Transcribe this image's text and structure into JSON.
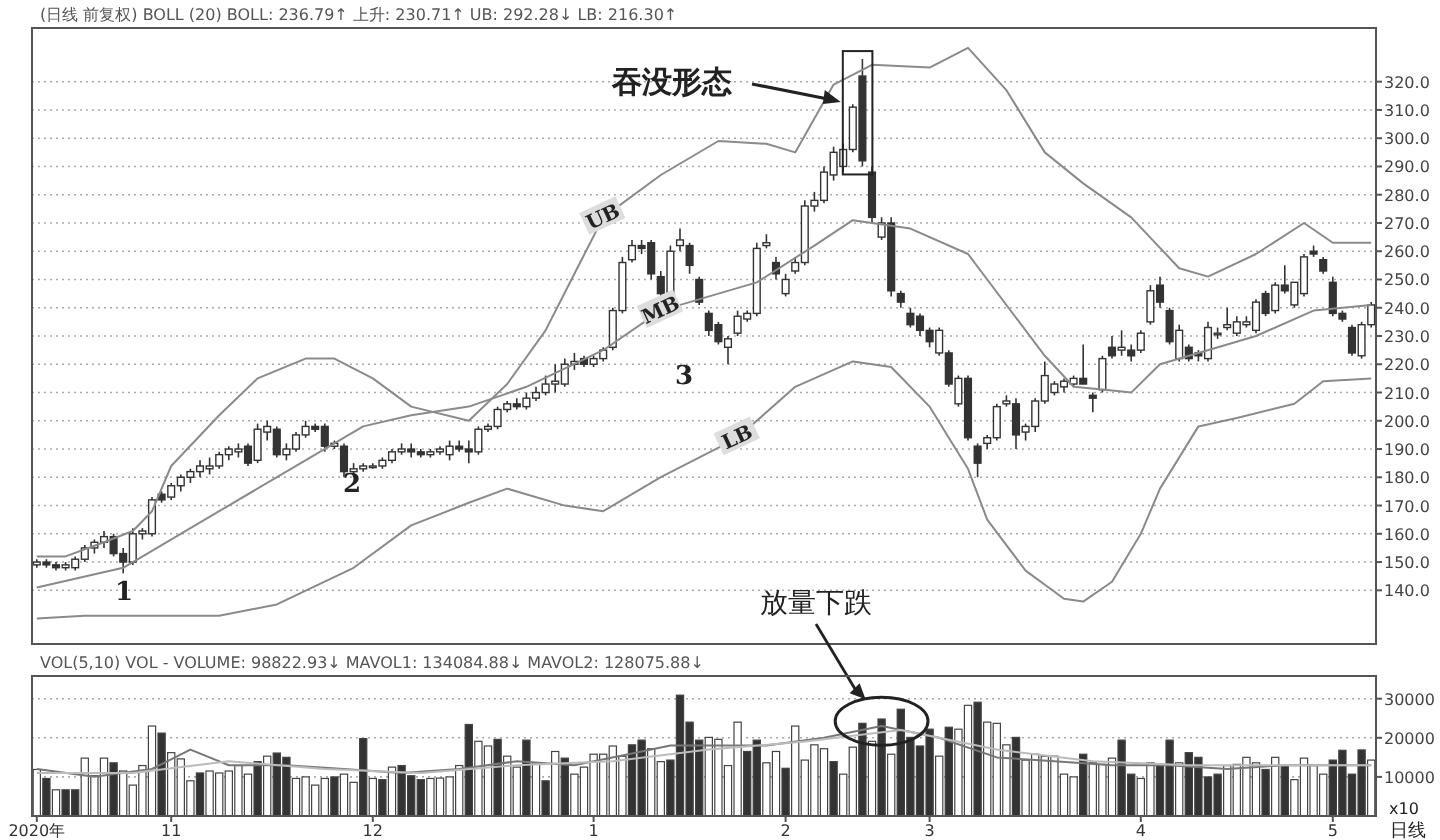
{
  "chart_data": [
    {
      "type": "candlestick",
      "title": "(日线 前复权)   BOLL (20) BOLL: 236.79↑ 上升: 230.71↑ UB: 292.28↓ LB: 216.30↑",
      "categories": [
        null,
        null,
        null,
        null,
        null,
        null,
        null,
        null,
        null,
        null,
        null,
        null,
        null,
        null,
        null,
        null,
        null,
        null,
        null,
        null,
        null,
        null,
        null,
        null,
        null,
        null,
        null,
        null,
        null,
        null,
        null,
        null,
        null,
        null,
        null,
        null,
        null,
        null,
        null,
        null,
        null,
        null,
        null,
        null,
        null,
        null,
        null,
        null,
        null,
        null,
        null,
        null,
        null,
        null,
        null,
        null,
        null,
        null,
        null,
        null,
        null,
        null,
        null,
        null,
        null,
        null,
        null,
        null,
        null,
        null,
        null,
        null,
        null,
        null,
        null,
        null,
        null,
        null,
        null,
        null,
        null,
        null,
        null,
        null,
        null,
        null,
        null,
        null,
        null,
        null,
        null,
        null,
        null,
        null,
        null,
        null,
        null,
        null,
        null,
        null,
        null,
        null,
        null,
        null,
        null,
        null,
        null,
        null,
        null,
        null,
        null,
        null,
        null,
        null,
        null,
        null,
        null,
        null,
        null,
        null,
        null,
        null,
        null,
        null,
        null,
        null,
        null,
        null,
        null,
        null,
        null,
        null,
        null,
        null,
        null,
        null,
        null,
        null,
        null,
        null
      ],
      "ohlc": [
        [
          149,
          151,
          148,
          150
        ],
        [
          150,
          151,
          148,
          149
        ],
        [
          149,
          150,
          147,
          148
        ],
        [
          148,
          150,
          147,
          149
        ],
        [
          148,
          152,
          147,
          151
        ],
        [
          151,
          156,
          150,
          155
        ],
        [
          155,
          158,
          153,
          157
        ],
        [
          157,
          161,
          155,
          159
        ],
        [
          159,
          160,
          152,
          153
        ],
        [
          153,
          155,
          146,
          150
        ],
        [
          150,
          162,
          149,
          160
        ],
        [
          160,
          162,
          158,
          161
        ],
        [
          160,
          173,
          159,
          172
        ],
        [
          174,
          175,
          171,
          172
        ],
        [
          173,
          178,
          172,
          177
        ],
        [
          177,
          181,
          175,
          180
        ],
        [
          180,
          183,
          178,
          182
        ],
        [
          182,
          186,
          180,
          184
        ],
        [
          183,
          187,
          181,
          184
        ],
        [
          184,
          189,
          183,
          188
        ],
        [
          188,
          191,
          186,
          190
        ],
        [
          189,
          192,
          187,
          190
        ],
        [
          191,
          192,
          184,
          185
        ],
        [
          186,
          199,
          185,
          197
        ],
        [
          196,
          200,
          193,
          198
        ],
        [
          197,
          198,
          187,
          188
        ],
        [
          188,
          192,
          186,
          190
        ],
        [
          190,
          196,
          189,
          195
        ],
        [
          195,
          200,
          194,
          198
        ],
        [
          198,
          199,
          196,
          197
        ],
        [
          198,
          199,
          189,
          191
        ],
        [
          191,
          193,
          190,
          192
        ],
        [
          191,
          192,
          180,
          182
        ],
        [
          182,
          185,
          180,
          183
        ],
        [
          183,
          185,
          182,
          184
        ],
        [
          184,
          185,
          183,
          184
        ],
        [
          184,
          187,
          183,
          186
        ],
        [
          186,
          190,
          185,
          189
        ],
        [
          189,
          192,
          188,
          190
        ],
        [
          190,
          192,
          187,
          189
        ],
        [
          189,
          190,
          187,
          188
        ],
        [
          188,
          190,
          187,
          189
        ],
        [
          189,
          191,
          188,
          190
        ],
        [
          188,
          193,
          186,
          191
        ],
        [
          191,
          193,
          189,
          190
        ],
        [
          190,
          193,
          185,
          189
        ],
        [
          189,
          198,
          188,
          197
        ],
        [
          197,
          199,
          196,
          198
        ],
        [
          198,
          205,
          197,
          204
        ],
        [
          204,
          207,
          203,
          206
        ],
        [
          206,
          208,
          204,
          205
        ],
        [
          205,
          210,
          204,
          208
        ],
        [
          208,
          212,
          207,
          210
        ],
        [
          210,
          216,
          209,
          213
        ],
        [
          213,
          220,
          210,
          214
        ],
        [
          213,
          222,
          212,
          220
        ],
        [
          220,
          224,
          218,
          221
        ],
        [
          222,
          223,
          219,
          220
        ],
        [
          220,
          223,
          219,
          222
        ],
        [
          222,
          226,
          221,
          225
        ],
        [
          226,
          240,
          225,
          239
        ],
        [
          239,
          258,
          238,
          256
        ],
        [
          257,
          264,
          256,
          262
        ],
        [
          262,
          264,
          259,
          261
        ],
        [
          263,
          264,
          250,
          252
        ],
        [
          251,
          253,
          243,
          245
        ],
        [
          242,
          262,
          240,
          260
        ],
        [
          262,
          268,
          260,
          264
        ],
        [
          262,
          263,
          252,
          255
        ],
        [
          250,
          251,
          241,
          242
        ],
        [
          238,
          239,
          230,
          232
        ],
        [
          234,
          235,
          227,
          228
        ],
        [
          226,
          230,
          220,
          229
        ],
        [
          231,
          239,
          230,
          237
        ],
        [
          236,
          239,
          235,
          238
        ],
        [
          238,
          263,
          237,
          261
        ],
        [
          262,
          266,
          261,
          263
        ],
        [
          256,
          258,
          250,
          252
        ],
        [
          245,
          252,
          244,
          250
        ],
        [
          253,
          258,
          252,
          256
        ],
        [
          256,
          278,
          255,
          276
        ],
        [
          276,
          281,
          274,
          278
        ],
        [
          278,
          290,
          277,
          288
        ],
        [
          287,
          297,
          285,
          295
        ],
        [
          290,
          298,
          288,
          296
        ],
        [
          296,
          312,
          295,
          311
        ],
        [
          322,
          328,
          290,
          292
        ],
        [
          288,
          290,
          270,
          272
        ],
        [
          265,
          272,
          264,
          270
        ],
        [
          270,
          272,
          244,
          246
        ],
        [
          245,
          246,
          240,
          242
        ],
        [
          238,
          240,
          233,
          234
        ],
        [
          237,
          238,
          230,
          232
        ],
        [
          232,
          233,
          226,
          228
        ],
        [
          224,
          233,
          223,
          232
        ],
        [
          224,
          225,
          212,
          213
        ],
        [
          206,
          216,
          205,
          215
        ],
        [
          215,
          216,
          193,
          194
        ],
        [
          191,
          192,
          180,
          185
        ],
        [
          192,
          195,
          190,
          194
        ],
        [
          194,
          206,
          193,
          205
        ],
        [
          206,
          209,
          205,
          207
        ],
        [
          206,
          208,
          190,
          195
        ],
        [
          196,
          199,
          193,
          198
        ],
        [
          198,
          208,
          196,
          207
        ],
        [
          207,
          221,
          206,
          216
        ],
        [
          210,
          214,
          209,
          213
        ],
        [
          212,
          215,
          210,
          214
        ],
        [
          213,
          216,
          212,
          215
        ],
        [
          215,
          227,
          213,
          213
        ],
        [
          209,
          210,
          203,
          208
        ],
        [
          211,
          223,
          210,
          222
        ],
        [
          226,
          230,
          222,
          223
        ],
        [
          225,
          232,
          223,
          226
        ],
        [
          225,
          227,
          221,
          223
        ],
        [
          225,
          232,
          224,
          231
        ],
        [
          235,
          248,
          234,
          246
        ],
        [
          248,
          251,
          240,
          242
        ],
        [
          239,
          240,
          227,
          228
        ],
        [
          222,
          234,
          221,
          232
        ],
        [
          226,
          227,
          221,
          222
        ],
        [
          224,
          225,
          221,
          223
        ],
        [
          222,
          235,
          221,
          233
        ],
        [
          231,
          233,
          229,
          231
        ],
        [
          233,
          240,
          232,
          234
        ],
        [
          231,
          237,
          230,
          235
        ],
        [
          234,
          237,
          233,
          235
        ],
        [
          232,
          243,
          231,
          242
        ],
        [
          245,
          246,
          237,
          238
        ],
        [
          239,
          249,
          238,
          248
        ],
        [
          248,
          255,
          245,
          246
        ],
        [
          241,
          249,
          240,
          249
        ],
        [
          245,
          259,
          244,
          258
        ],
        [
          260,
          262,
          258,
          259
        ],
        [
          257,
          258,
          252,
          253
        ],
        [
          249,
          251,
          237,
          238
        ],
        [
          238,
          239,
          235,
          236
        ],
        [
          233,
          234,
          223,
          224
        ],
        [
          223,
          235,
          222,
          234
        ],
        [
          234,
          242,
          233,
          241
        ]
      ],
      "series": [
        {
          "name": "UB",
          "type": "line",
          "color": "#8a8a8a",
          "values": [
            152,
            null,
            null,
            152,
            null,
            null,
            null,
            157,
            null,
            null,
            161,
            null,
            168,
            null,
            184,
            null,
            null,
            null,
            null,
            202,
            null,
            null,
            null,
            215,
            null,
            null,
            null,
            null,
            222,
            null,
            null,
            222,
            null,
            null,
            null,
            215,
            null,
            null,
            null,
            205,
            null,
            null,
            null,
            null,
            null,
            200,
            null,
            null,
            null,
            213,
            null,
            null,
            null,
            232,
            null,
            null,
            252,
            null,
            null,
            272,
            null,
            null,
            null,
            null,
            null,
            287,
            null,
            null,
            null,
            null,
            null,
            299,
            null,
            null,
            null,
            null,
            298,
            null,
            null,
            295,
            null,
            null,
            null,
            319,
            null,
            null,
            null,
            326,
            null,
            null,
            null,
            null,
            null,
            325,
            null,
            null,
            null,
            332,
            null,
            null,
            null,
            317,
            null,
            null,
            null,
            295,
            null,
            null,
            null,
            284,
            null,
            null,
            null,
            null,
            272,
            null,
            null,
            null,
            null,
            254,
            null,
            null,
            251,
            null,
            null,
            null,
            null,
            259,
            null,
            null,
            null,
            null,
            270,
            null,
            null,
            263,
            null,
            null,
            null,
            263
          ]
        },
        {
          "name": "MB",
          "type": "line",
          "color": "#8a8a8a",
          "values": [
            141,
            null,
            null,
            null,
            null,
            null,
            null,
            null,
            null,
            148,
            null,
            null,
            null,
            null,
            null,
            null,
            null,
            null,
            null,
            168,
            null,
            null,
            null,
            null,
            null,
            null,
            null,
            null,
            null,
            188,
            null,
            null,
            null,
            null,
            198,
            null,
            null,
            null,
            null,
            202,
            null,
            null,
            null,
            null,
            null,
            205,
            null,
            null,
            null,
            null,
            null,
            212,
            null,
            null,
            null,
            null,
            null,
            null,
            null,
            225,
            null,
            null,
            null,
            null,
            null,
            239,
            null,
            null,
            null,
            null,
            null,
            245,
            null,
            null,
            null,
            249,
            null,
            null,
            null,
            null,
            null,
            262,
            null,
            null,
            null,
            271,
            null,
            270,
            null,
            null,
            null,
            268,
            null,
            null,
            null,
            null,
            null,
            259,
            null,
            null,
            null,
            241,
            null,
            null,
            null,
            223,
            null,
            null,
            212,
            null,
            null,
            211,
            null,
            null,
            210,
            null,
            null,
            220,
            null,
            null,
            null,
            224,
            null,
            null,
            null,
            null,
            null,
            230,
            null,
            null,
            null,
            null,
            null,
            239,
            null,
            null,
            null,
            null,
            null,
            241
          ]
        },
        {
          "name": "LB",
          "type": "line",
          "color": "#8a8a8a",
          "values": [
            130,
            null,
            null,
            null,
            null,
            131,
            null,
            null,
            null,
            null,
            null,
            131,
            null,
            null,
            null,
            null,
            null,
            null,
            null,
            131,
            null,
            null,
            null,
            null,
            null,
            135,
            null,
            null,
            null,
            null,
            null,
            null,
            null,
            148,
            null,
            null,
            null,
            null,
            null,
            163,
            null,
            null,
            null,
            null,
            null,
            171,
            null,
            null,
            null,
            176,
            null,
            null,
            null,
            null,
            null,
            170,
            null,
            null,
            null,
            168,
            null,
            null,
            null,
            null,
            null,
            180,
            null,
            null,
            null,
            null,
            null,
            null,
            null,
            194,
            null,
            null,
            null,
            null,
            null,
            212,
            null,
            null,
            null,
            null,
            null,
            221,
            null,
            null,
            null,
            219,
            null,
            null,
            null,
            205,
            null,
            194,
            null,
            183,
            null,
            165,
            null,
            null,
            null,
            147,
            null,
            null,
            null,
            137,
            null,
            136,
            null,
            null,
            143,
            null,
            null,
            160,
            null,
            176,
            null,
            null,
            null,
            198,
            null,
            null,
            null,
            201,
            null,
            null,
            null,
            null,
            null,
            206,
            null,
            null,
            214,
            null,
            null,
            null,
            null,
            215
          ]
        }
      ],
      "ylim": [
        121,
        339
      ],
      "yticks": [
        {
          "value": 140,
          "label": "140.0"
        },
        {
          "value": 150,
          "label": "150.0"
        },
        {
          "value": 160,
          "label": "160.0"
        },
        {
          "value": 170,
          "label": "170.0"
        },
        {
          "value": 180,
          "label": "180.0"
        },
        {
          "value": 190,
          "label": "190.0"
        },
        {
          "value": 200,
          "label": "200.0"
        },
        {
          "value": 210,
          "label": "210.0"
        },
        {
          "value": 220,
          "label": "220.0"
        },
        {
          "value": 230,
          "label": "230.0"
        },
        {
          "value": 240,
          "label": "240.0"
        },
        {
          "value": 250,
          "label": "250.0"
        },
        {
          "value": 260,
          "label": "260.0"
        },
        {
          "value": 270,
          "label": "270.0"
        },
        {
          "value": 280,
          "label": "280.0"
        },
        {
          "value": 290,
          "label": "290.0"
        },
        {
          "value": 300,
          "label": "300.0"
        },
        {
          "value": 310,
          "label": "310.0"
        },
        {
          "value": 320,
          "label": "320.0"
        }
      ],
      "grid": "y",
      "tick_labels": "y",
      "annotations": [
        "吞没形态",
        "1",
        "2",
        "3"
      ]
    },
    {
      "type": "bar",
      "title": "VOL(5,10) VOL - VOLUME: 98822.93↓ MAVOL1: 134084.88↓ MAVOL2: 128075.88↓",
      "categories": [
        "2020年",
        null,
        null,
        null,
        null,
        null,
        null,
        null,
        null,
        null,
        null,
        null,
        null,
        null,
        "11",
        null,
        null,
        null,
        null,
        null,
        null,
        null,
        null,
        null,
        null,
        null,
        null,
        null,
        null,
        null,
        null,
        null,
        null,
        null,
        null,
        "12",
        null,
        null,
        null,
        null,
        null,
        null,
        null,
        null,
        null,
        null,
        null,
        null,
        null,
        null,
        null,
        null,
        null,
        null,
        null,
        null,
        null,
        null,
        "1",
        null,
        null,
        null,
        null,
        null,
        null,
        null,
        null,
        null,
        null,
        null,
        null,
        null,
        null,
        null,
        null,
        null,
        null,
        null,
        "2",
        null,
        null,
        null,
        null,
        null,
        null,
        null,
        null,
        null,
        null,
        null,
        null,
        null,
        null,
        "3",
        null,
        null,
        null,
        null,
        null,
        null,
        null,
        null,
        null,
        null,
        null,
        null,
        null,
        null,
        null,
        null,
        null,
        null,
        null,
        null,
        null,
        "4",
        null,
        null,
        null,
        null,
        null,
        null,
        null,
        null,
        null,
        null,
        null,
        null,
        null,
        null,
        null,
        null,
        null,
        null,
        null,
        "5",
        null,
        null,
        null,
        null
      ],
      "series": [
        {
          "type": "bar",
          "values": [
            11900,
            9600,
            6700,
            6700,
            6700,
            14800,
            10300,
            14800,
            13600,
            11500,
            7900,
            12900,
            23000,
            21200,
            16200,
            14600,
            9000,
            11000,
            11500,
            11000,
            11500,
            12900,
            10700,
            13900,
            15300,
            16100,
            15000,
            9600,
            10000,
            7900,
            9600,
            10000,
            10700,
            8600,
            19800,
            9600,
            9300,
            12500,
            12900,
            10300,
            9300,
            9600,
            9700,
            10000,
            12900,
            23400,
            19100,
            17900,
            19600,
            15300,
            12500,
            19400,
            13600,
            9000,
            16500,
            14800,
            10700,
            12500,
            15800,
            15800,
            17900,
            15300,
            18200,
            19400,
            17200,
            13900,
            14300,
            30900,
            24000,
            19400,
            20100,
            19600,
            12900,
            24000,
            16500,
            19400,
            13600,
            16500,
            12200,
            23000,
            14300,
            18200,
            17200,
            13900,
            10700,
            17600,
            23700,
            19100,
            24800,
            15800,
            27300,
            20100,
            17900,
            22200,
            15300,
            22700,
            22200,
            28300,
            29100,
            24000,
            23700,
            18200,
            20100,
            14300,
            15800,
            15300,
            15300,
            10700,
            10000,
            15800,
            13600,
            13200,
            14800,
            19400,
            10700,
            9600,
            13600,
            13300,
            19400,
            13600,
            16200,
            15000,
            10000,
            10700,
            12900,
            13200,
            15000,
            13600,
            11900,
            15000,
            12900,
            9300,
            14800,
            12900,
            10700,
            14300,
            16800,
            10700,
            16900,
            14300
          ],
          "colors": [
            "#ffffff",
            "#333333",
            "#ffffff",
            "#333333",
            "#333333",
            "#ffffff",
            "#ffffff",
            "#ffffff",
            "#333333",
            "#ffffff",
            "#ffffff",
            "#ffffff",
            "#ffffff",
            "#333333",
            "#ffffff",
            "#ffffff",
            "#ffffff",
            "#333333",
            "#ffffff",
            "#ffffff",
            "#ffffff",
            "#ffffff",
            "#ffffff",
            "#333333",
            "#ffffff",
            "#333333",
            "#333333",
            "#ffffff",
            "#ffffff",
            "#ffffff",
            "#ffffff",
            "#333333",
            "#ffffff",
            "#ffffff",
            "#333333",
            "#ffffff",
            "#333333",
            "#ffffff",
            "#333333",
            "#333333",
            "#333333",
            "#ffffff",
            "#ffffff",
            "#ffffff",
            "#ffffff",
            "#333333",
            "#ffffff",
            "#ffffff",
            "#333333",
            "#ffffff",
            "#ffffff",
            "#333333",
            "#ffffff",
            "#333333",
            "#ffffff",
            "#333333",
            "#ffffff",
            "#ffffff",
            "#ffffff",
            "#ffffff",
            "#ffffff",
            "#ffffff",
            "#333333",
            "#333333",
            "#ffffff",
            "#ffffff",
            "#333333",
            "#333333",
            "#333333",
            "#333333",
            "#ffffff",
            "#ffffff",
            "#ffffff",
            "#ffffff",
            "#333333",
            "#333333",
            "#ffffff",
            "#ffffff",
            "#333333",
            "#ffffff",
            "#ffffff",
            "#ffffff",
            "#ffffff",
            "#333333",
            "#ffffff",
            "#ffffff",
            "#333333",
            "#ffffff",
            "#333333",
            "#ffffff",
            "#333333",
            "#333333",
            "#333333",
            "#333333",
            "#ffffff",
            "#333333",
            "#ffffff",
            "#ffffff",
            "#333333",
            "#ffffff",
            "#ffffff",
            "#ffffff",
            "#333333",
            "#ffffff",
            "#ffffff",
            "#ffffff",
            "#ffffff",
            "#ffffff",
            "#ffffff",
            "#333333",
            "#ffffff",
            "#ffffff",
            "#ffffff",
            "#333333",
            "#333333",
            "#ffffff",
            "#ffffff",
            "#333333",
            "#333333",
            "#ffffff",
            "#333333",
            "#333333",
            "#333333",
            "#333333",
            "#ffffff",
            "#ffffff",
            "#ffffff",
            "#ffffff",
            "#333333",
            "#ffffff",
            "#333333",
            "#ffffff",
            "#ffffff",
            "#ffffff",
            "#ffffff",
            "#333333",
            "#333333",
            "#333333",
            "#333333",
            "#ffffff"
          ]
        },
        {
          "type": "line",
          "color": "#777777",
          "values": [
            12000,
            null,
            null,
            null,
            null,
            null,
            10000,
            null,
            null,
            null,
            null,
            null,
            12000,
            null,
            null,
            null,
            17000,
            null,
            null,
            null,
            13000,
            null,
            null,
            null,
            null,
            null,
            13000,
            null,
            null,
            null,
            null,
            null,
            12000,
            null,
            null,
            null,
            null,
            null,
            11000,
            null,
            null,
            null,
            null,
            null,
            12000,
            null,
            null,
            null,
            null,
            null,
            14000,
            null,
            null,
            null,
            null,
            null,
            13000,
            null,
            null,
            null,
            null,
            null,
            16000,
            null,
            null,
            null,
            18000,
            null,
            null,
            null,
            18000,
            null,
            null,
            null,
            null,
            null,
            18000,
            null,
            null,
            null,
            null,
            null,
            20000,
            null,
            null,
            null,
            null,
            null,
            23000,
            null,
            null,
            null,
            null,
            null,
            20000,
            null,
            null,
            null,
            null,
            null,
            15000,
            null,
            null,
            null,
            null,
            null,
            14000,
            null,
            null,
            null,
            null,
            null,
            13000,
            null,
            null,
            null,
            null,
            null,
            13000,
            null,
            null,
            null,
            null,
            null,
            12000,
            null,
            null,
            null,
            null,
            null,
            13000,
            null,
            null,
            null,
            null,
            null,
            null,
            null,
            null,
            13000
          ]
        },
        {
          "type": "line",
          "color": "#bbbbbb",
          "values": [
            11000,
            null,
            null,
            null,
            null,
            null,
            null,
            null,
            null,
            null,
            11000,
            null,
            null,
            null,
            null,
            null,
            null,
            null,
            null,
            null,
            14000,
            null,
            null,
            null,
            null,
            null,
            null,
            null,
            null,
            null,
            12000,
            null,
            null,
            null,
            null,
            null,
            null,
            null,
            null,
            null,
            11000,
            null,
            null,
            null,
            null,
            null,
            null,
            null,
            null,
            null,
            13000,
            null,
            null,
            null,
            null,
            null,
            null,
            null,
            null,
            null,
            14000,
            null,
            null,
            null,
            null,
            null,
            null,
            null,
            null,
            null,
            17000,
            null,
            null,
            null,
            null,
            null,
            null,
            null,
            null,
            null,
            19000,
            null,
            null,
            null,
            null,
            null,
            null,
            null,
            null,
            null,
            22000,
            null,
            null,
            null,
            null,
            null,
            null,
            null,
            null,
            null,
            17000,
            null,
            null,
            null,
            null,
            null,
            null,
            null,
            null,
            null,
            14000,
            null,
            null,
            null,
            null,
            null,
            null,
            null,
            null,
            null,
            13000,
            null,
            null,
            null,
            null,
            null,
            null,
            null,
            null,
            null,
            13000,
            null,
            null,
            null,
            null,
            null,
            null,
            null,
            null,
            13000
          ]
        }
      ],
      "ylim": [
        0,
        35800
      ],
      "yticks": [
        10000,
        20000,
        30000
      ],
      "grid": "y",
      "annotations": [
        "放量下跌",
        "x10",
        "日线"
      ]
    }
  ]
}
